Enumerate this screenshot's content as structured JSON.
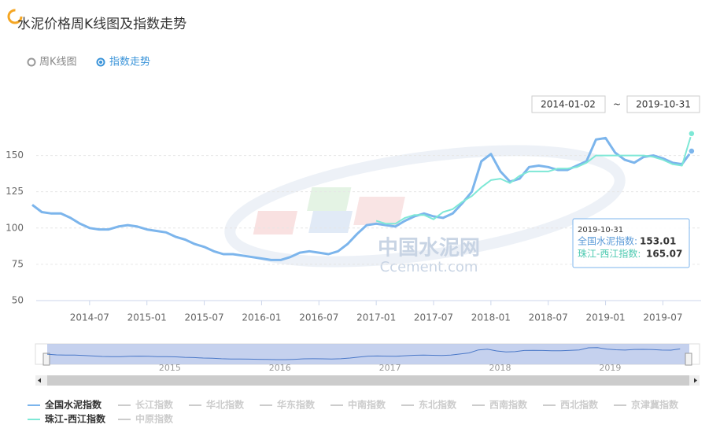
{
  "header": {
    "title": "水泥价格周K线图及指数走势"
  },
  "tabs": [
    {
      "label": "周K线图",
      "selected": false
    },
    {
      "label": "指数走势",
      "selected": true
    }
  ],
  "date_range": {
    "start": "2014-01-02",
    "separator": "~",
    "end": "2019-10-31"
  },
  "watermark": {
    "line1": "中国水泥网",
    "line2": "Ccement.com"
  },
  "chart_data": {
    "type": "line",
    "x": [
      "2014-01",
      "2014-02",
      "2014-03",
      "2014-04",
      "2014-05",
      "2014-06",
      "2014-07",
      "2014-08",
      "2014-09",
      "2014-10",
      "2014-11",
      "2014-12",
      "2015-01",
      "2015-02",
      "2015-03",
      "2015-04",
      "2015-05",
      "2015-06",
      "2015-07",
      "2015-08",
      "2015-09",
      "2015-10",
      "2015-11",
      "2015-12",
      "2016-01",
      "2016-02",
      "2016-03",
      "2016-04",
      "2016-05",
      "2016-06",
      "2016-07",
      "2016-08",
      "2016-09",
      "2016-10",
      "2016-11",
      "2016-12",
      "2017-01",
      "2017-02",
      "2017-03",
      "2017-04",
      "2017-05",
      "2017-06",
      "2017-07",
      "2017-08",
      "2017-09",
      "2017-10",
      "2017-11",
      "2017-12",
      "2018-01",
      "2018-02",
      "2018-03",
      "2018-04",
      "2018-05",
      "2018-06",
      "2018-07",
      "2018-08",
      "2018-09",
      "2018-10",
      "2018-11",
      "2018-12",
      "2019-01",
      "2019-02",
      "2019-03",
      "2019-04",
      "2019-05",
      "2019-06",
      "2019-07",
      "2019-08",
      "2019-09",
      "2019-10"
    ],
    "series": [
      {
        "name": "全国水泥指数",
        "color": "#7cb5ec",
        "values": [
          116,
          111,
          110,
          110,
          107,
          103,
          100,
          99,
          99,
          101,
          102,
          101,
          99,
          98,
          97,
          94,
          92,
          89,
          87,
          84,
          82,
          82,
          81,
          80,
          79,
          78,
          78,
          80,
          83,
          84,
          83,
          82,
          84,
          89,
          96,
          102,
          103,
          102,
          101,
          105,
          108,
          110,
          108,
          107,
          110,
          117,
          125,
          146,
          151,
          139,
          132,
          134,
          142,
          143,
          142,
          140,
          140,
          143,
          146,
          161,
          162,
          152,
          147,
          145,
          149,
          150,
          148,
          145,
          144,
          153.01
        ]
      },
      {
        "name": "珠江-西江指数",
        "color": "#7ee8d6",
        "values": [
          null,
          null,
          null,
          null,
          null,
          null,
          null,
          null,
          null,
          null,
          null,
          null,
          null,
          null,
          null,
          null,
          null,
          null,
          null,
          null,
          null,
          null,
          null,
          null,
          null,
          null,
          null,
          null,
          null,
          null,
          null,
          null,
          null,
          null,
          null,
          null,
          105,
          103,
          103,
          107,
          109,
          109,
          106,
          111,
          113,
          118,
          122,
          128,
          133,
          134,
          131,
          136,
          139,
          139,
          139,
          141,
          141,
          142,
          145,
          150,
          150,
          150,
          150,
          150,
          150,
          149,
          147,
          144,
          143,
          165.07
        ]
      }
    ],
    "inactive_legend": [
      "长江指数",
      "华北指数",
      "华东指数",
      "中南指数",
      "东北指数",
      "西南指数",
      "西北指数",
      "京津冀指数",
      "中原指数"
    ],
    "xlim": [
      "2014-01",
      "2019-11"
    ],
    "xticks": [
      "2014-07",
      "2015-01",
      "2015-07",
      "2016-01",
      "2016-07",
      "2017-01",
      "2017-07",
      "2018-01",
      "2018-07",
      "2019-01",
      "2019-07"
    ],
    "ylim": [
      50,
      172
    ],
    "yticks": [
      50,
      75,
      100,
      125,
      150
    ],
    "grid": true,
    "tooltip": {
      "date": "2019-10-31",
      "labels": [
        "全国水泥指数:",
        "珠江-西江指数:"
      ]
    },
    "navigator_labels": [
      "2015",
      "2016",
      "2017",
      "2018",
      "2019"
    ]
  }
}
